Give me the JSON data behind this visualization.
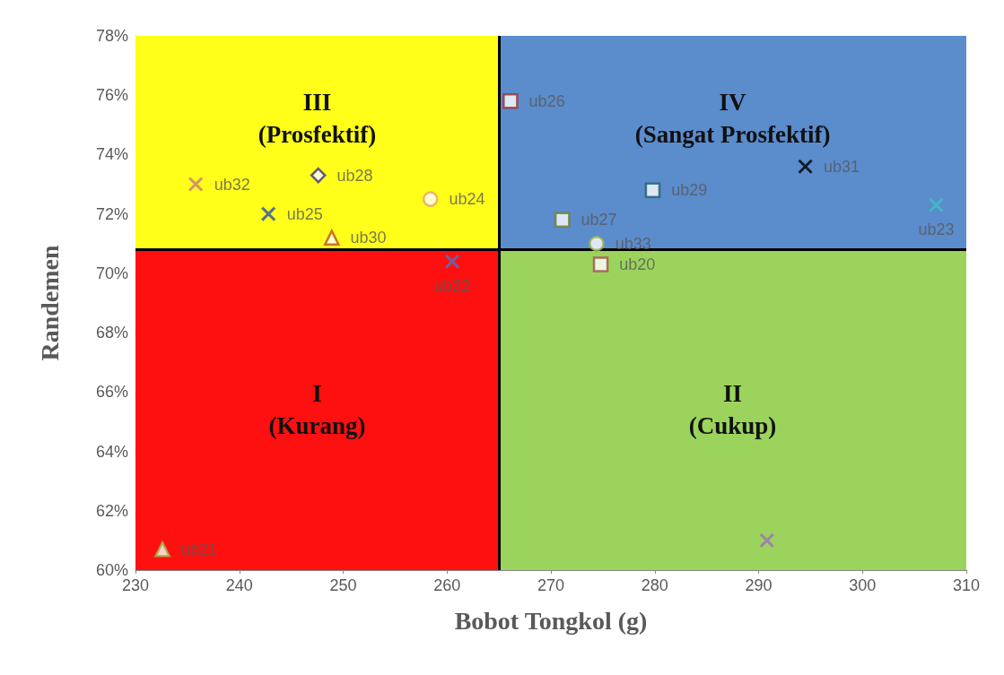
{
  "chart_data": {
    "type": "scatter",
    "xlabel": "Bobot Tongkol (g)",
    "ylabel": "Randemen",
    "xlim": [
      230,
      310
    ],
    "xticks": [
      230,
      240,
      250,
      260,
      270,
      280,
      290,
      300,
      310
    ],
    "ylim": [
      60,
      78
    ],
    "yticks": [
      {
        "value": 60,
        "label": "60%"
      },
      {
        "value": 62,
        "label": "62%"
      },
      {
        "value": 64,
        "label": "64%"
      },
      {
        "value": 66,
        "label": "66%"
      },
      {
        "value": 68,
        "label": "68%"
      },
      {
        "value": 70,
        "label": "70%"
      },
      {
        "value": 72,
        "label": "72%"
      },
      {
        "value": 74,
        "label": "74%"
      },
      {
        "value": 76,
        "label": "76%"
      },
      {
        "value": 78,
        "label": "78%"
      }
    ],
    "grid": false,
    "legend": false,
    "bands": [
      {
        "axis": "x",
        "from": 230,
        "to": 265,
        "label": "I\n(Kurang)",
        "color": "#ff1010"
      },
      {
        "axis": "x",
        "from": 265,
        "to": 310,
        "label": "II\n(Cukup)",
        "color": "#9bd35d"
      },
      {
        "axis": "x",
        "from": 230,
        "to": 265,
        "label": "III\n(Prosfektif)",
        "color": "#ffff19"
      },
      {
        "axis": "x",
        "from": 265,
        "to": 310,
        "label": "IV\n(Sangat Prosfektif)",
        "color": "#5b8ccc"
      }
    ],
    "ref_lines": [
      {
        "axis": "x",
        "value": 265,
        "color": "#000000"
      },
      {
        "axis": "y",
        "value": 70.8,
        "color": "#000000"
      }
    ],
    "series": [
      {
        "name": "ub32",
        "color": "#c87878",
        "marker": "cross",
        "x": [
          235.8
        ],
        "values": [
          73.0
        ]
      },
      {
        "name": "ub25",
        "color": "#2f4fa0",
        "marker": "cross",
        "x": [
          242.8
        ],
        "values": [
          72.0
        ]
      },
      {
        "name": "ub28",
        "color": "#403080",
        "marker": "diamond",
        "x": [
          247.6
        ],
        "values": [
          73.3
        ]
      },
      {
        "name": "ub30",
        "color": "#c05010",
        "marker": "triangle",
        "x": [
          248.9
        ],
        "values": [
          71.2
        ]
      },
      {
        "name": "ub24",
        "color": "#f0a060",
        "marker": "circle",
        "x": [
          258.4
        ],
        "values": [
          72.5
        ]
      },
      {
        "name": "ub22",
        "color": "#5070c0",
        "marker": "cross",
        "x": [
          260.5
        ],
        "values": [
          70.4
        ]
      },
      {
        "name": "ub26",
        "color": "#a03030",
        "marker": "square",
        "x": [
          266.1
        ],
        "values": [
          75.8
        ]
      },
      {
        "name": "ub27",
        "color": "#708030",
        "marker": "square",
        "x": [
          271.1
        ],
        "values": [
          71.8
        ]
      },
      {
        "name": "ub33",
        "color": "#98b848",
        "marker": "circle",
        "x": [
          274.4
        ],
        "values": [
          71.0
        ]
      },
      {
        "name": "ub20",
        "color": "#a05050",
        "marker": "square",
        "x": [
          274.8
        ],
        "values": [
          70.3
        ]
      },
      {
        "name": "ub29",
        "color": "#1f5f6f",
        "marker": "square",
        "x": [
          279.8
        ],
        "values": [
          72.8
        ]
      },
      {
        "name": "ub31",
        "color": "#000000",
        "marker": "cross",
        "x": [
          294.5
        ],
        "values": [
          73.6
        ]
      },
      {
        "name": "ub23",
        "color": "#40c0c0",
        "marker": "cross",
        "x": [
          307.1
        ],
        "values": [
          72.3
        ]
      },
      {
        "color": "#a070c0",
        "marker": "cross",
        "x": [
          290.8
        ],
        "values": [
          61.0
        ]
      },
      {
        "name": "ub21",
        "color": "#98b848",
        "marker": "triangle",
        "x": [
          232.6
        ],
        "values": [
          60.7
        ]
      }
    ]
  }
}
